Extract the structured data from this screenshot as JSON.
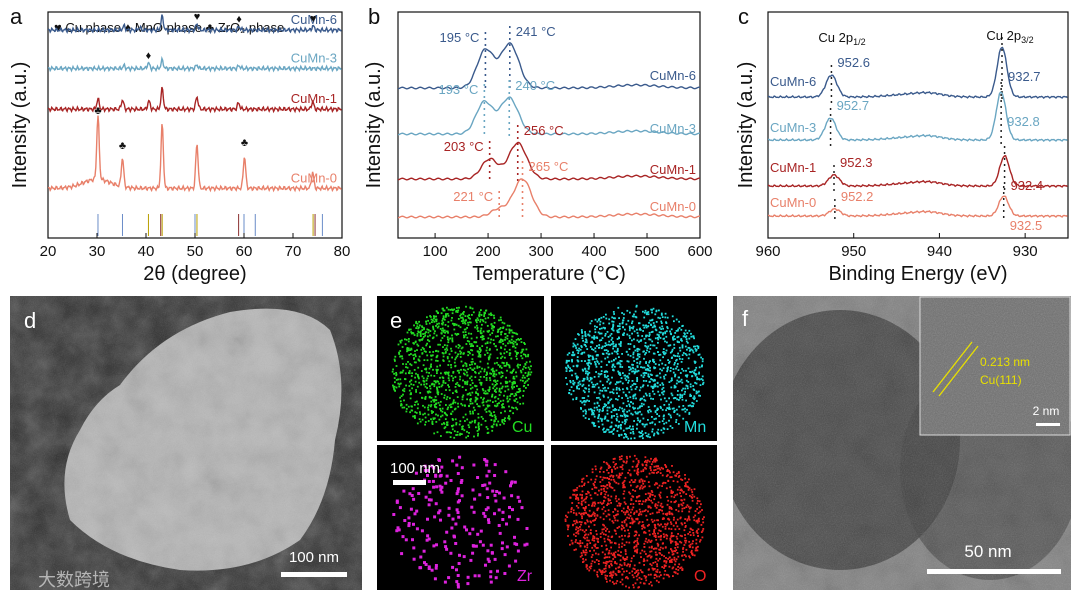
{
  "panel_labels": [
    "a",
    "b",
    "c",
    "d",
    "e",
    "f"
  ],
  "legend_a": "♥ Cu phase  ♦ MnO phase  ♣ ZrO₂ phase",
  "colors": {
    "CuMn-6": "#3a5a8c",
    "CuMn-3": "#6aa6c2",
    "CuMn-1": "#a82424",
    "CuMn-0": "#e8806a"
  },
  "chart_data": [
    {
      "type": "line",
      "panel": "a",
      "xlabel": "2θ (degree)",
      "ylabel": "Intensity (a.u.)",
      "xlim": [
        20,
        80
      ],
      "xticks": [
        "20",
        "30",
        "40",
        "50",
        "60",
        "70",
        "80"
      ],
      "series": [
        {
          "name": "CuMn-6",
          "peaks": [
            [
              35.5,
              0.3
            ],
            [
              38.7,
              0.2
            ],
            [
              43.3,
              1.0
            ],
            [
              50.4,
              0.45
            ],
            [
              59.0,
              0.25
            ],
            [
              74.1,
              0.3
            ]
          ],
          "baseline": 0.92,
          "scale": 0.06
        },
        {
          "name": "CuMn-3",
          "peaks": [
            [
              35.5,
              0.2
            ],
            [
              40.5,
              0.4
            ],
            [
              43.3,
              0.6
            ],
            [
              50.4,
              0.25
            ],
            [
              59.0,
              0.2
            ]
          ],
          "baseline": 0.75,
          "scale": 0.06
        },
        {
          "name": "CuMn-1",
          "peaks": [
            [
              30.2,
              0.5
            ],
            [
              35.2,
              0.45
            ],
            [
              40.6,
              0.4
            ],
            [
              43.3,
              1.0
            ],
            [
              50.4,
              0.6
            ],
            [
              58.9,
              0.3
            ],
            [
              74.0,
              0.35
            ]
          ],
          "baseline": 0.57,
          "scale": 0.09
        },
        {
          "name": "CuMn-0",
          "peaks": [
            [
              30.2,
              1.0
            ],
            [
              35.2,
              0.45
            ],
            [
              43.3,
              1.0
            ],
            [
              50.4,
              0.7
            ],
            [
              60.1,
              0.5
            ],
            [
              74.0,
              0.25
            ]
          ],
          "baseline": 0.22,
          "scale": 0.28
        }
      ],
      "phase_markers": [
        {
          "symbol": "♥",
          "x": 43.3,
          "series": "CuMn-6"
        },
        {
          "symbol": "♥",
          "x": 50.4,
          "series": "CuMn-6"
        },
        {
          "symbol": "♦",
          "x": 59.0,
          "series": "CuMn-6"
        },
        {
          "symbol": "♥",
          "x": 74.1,
          "series": "CuMn-6"
        },
        {
          "symbol": "♦",
          "x": 40.5,
          "series": "CuMn-3"
        },
        {
          "symbol": "♣",
          "x": 30.2,
          "series": "CuMn-0"
        },
        {
          "symbol": "♣",
          "x": 35.2,
          "series": "CuMn-0"
        },
        {
          "symbol": "♣",
          "x": 60.1,
          "series": "CuMn-0"
        }
      ]
    },
    {
      "type": "line",
      "panel": "b",
      "xlabel": "Temperature (°C)",
      "ylabel": "Intensity (a.u.)",
      "xlim": [
        30,
        600
      ],
      "xticks": [
        "100",
        "200",
        "300",
        "400",
        "500",
        "600"
      ],
      "series": [
        {
          "name": "CuMn-6",
          "peaks": [
            [
              195,
              "195 °C"
            ],
            [
              241,
              "241 °C"
            ]
          ]
        },
        {
          "name": "CuMn-3",
          "peaks": [
            [
              193,
              "193 °C"
            ],
            [
              240,
              "240 °C"
            ]
          ]
        },
        {
          "name": "CuMn-1",
          "peaks": [
            [
              203,
              "203 °C"
            ],
            [
              256,
              "256 °C"
            ]
          ]
        },
        {
          "name": "CuMn-0",
          "peaks": [
            [
              221,
              "221 °C"
            ],
            [
              265,
              "265 °C"
            ]
          ]
        }
      ]
    },
    {
      "type": "line",
      "panel": "c",
      "xlabel": "Binding Energy (eV)",
      "ylabel": "Intensity (a.u.)",
      "xlim": [
        960,
        925
      ],
      "xticks": [
        "960",
        "950",
        "940",
        "930"
      ],
      "peak_titles": [
        "Cu 2p1/2",
        "Cu 2p3/2"
      ],
      "series": [
        {
          "name": "CuMn-6",
          "p12": 952.6,
          "p32": 932.7,
          "l12": "952.6",
          "l32": "932.7"
        },
        {
          "name": "CuMn-3",
          "p12": 952.7,
          "p32": 932.8,
          "l12": "952.7",
          "l32": "932.8"
        },
        {
          "name": "CuMn-1",
          "p12": 952.3,
          "p32": 932.4,
          "l12": "952.3",
          "l32": "932.4"
        },
        {
          "name": "CuMn-0",
          "p12": 952.2,
          "p32": 932.5,
          "l12": "952.2",
          "l32": "932.5"
        }
      ]
    }
  ],
  "images": {
    "d": {
      "scale_bar": "100 nm"
    },
    "e": {
      "maps": [
        "Cu",
        "Mn",
        "Zr",
        "O"
      ],
      "map_colors": [
        "#22dd22",
        "#22dddd",
        "#dd22dd",
        "#ee2222"
      ],
      "scale_bar": "100 nm"
    },
    "f": {
      "scale_bar": "50 nm",
      "inset_scale": "2 nm",
      "inset_text1": "0.213 nm",
      "inset_text2": "Cu(111)"
    }
  },
  "watermark": "大数跨境"
}
